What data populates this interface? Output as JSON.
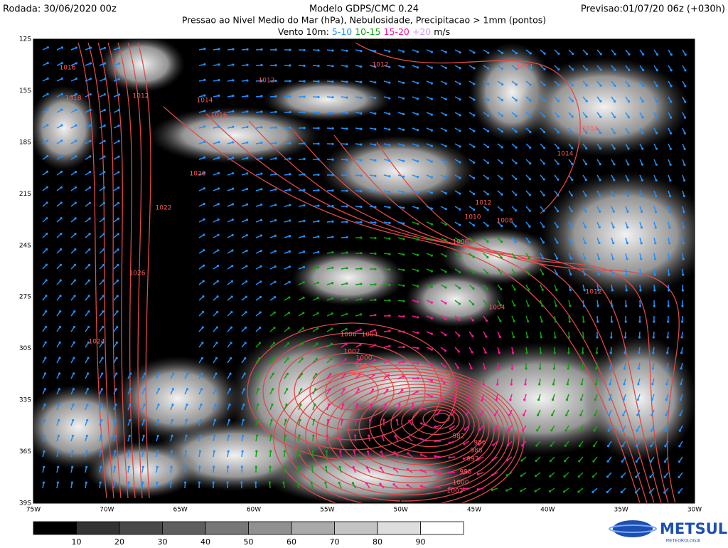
{
  "header": {
    "run": "Rodada: 30/06/2020 00z",
    "model": "Modelo GDPS/CMC 0.24",
    "forecast": "Previsao:01/07/20 06z (+030h)",
    "fields": "Pressao ao Nivel Medio do Mar (hPa), Nebulosidade, Precipitacao > 1mm (pontos)",
    "wind": {
      "title": "Vento 10m:",
      "classes": [
        "5-10",
        "10-15",
        "15-20",
        "+20"
      ],
      "unit": "m/s"
    }
  },
  "map": {
    "lat_labels": [
      "12S",
      "15S",
      "18S",
      "21S",
      "24S",
      "27S",
      "30S",
      "33S",
      "36S",
      "39S"
    ],
    "lon_labels": [
      "75W",
      "70W",
      "65W",
      "60W",
      "55W",
      "50W",
      "45W",
      "40W",
      "35W",
      "30W"
    ],
    "isobar_labels": [
      "1016",
      "1018",
      "1012",
      "1012",
      "1014",
      "1016",
      "1012",
      "1020",
      "1022",
      "1026",
      "1024",
      "1014",
      "1014",
      "1014",
      "1012",
      "1010",
      "1008",
      "1006",
      "1004",
      "1012",
      "1006",
      "1004",
      "1002",
      "1000",
      "998",
      "996",
      "994",
      "982",
      "986",
      "988",
      "992",
      "998",
      "1000",
      "1002"
    ]
  },
  "colorbar": {
    "labels": [
      "10",
      "20",
      "30",
      "40",
      "50",
      "60",
      "70",
      "80",
      "90"
    ]
  },
  "logo": {
    "name": "METSUL",
    "tagline": "METEOROLOGIA"
  }
}
